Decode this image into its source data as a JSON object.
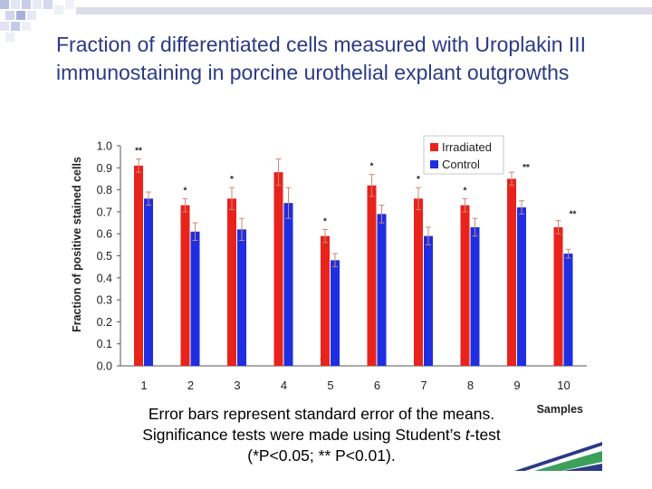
{
  "slide": {
    "title": "Fraction of differentiated cells measured with Uroplakin III immunostaining in porcine urothelial explant outgrowths",
    "caption_line1": "Error bars represent standard error of the means.",
    "caption_line2_pre": "Significance tests were made using Student’s ",
    "caption_line2_italic": "t",
    "caption_line2_post": "-test",
    "caption_line3": "(*P<0.05; ** P<0.01).",
    "accent_color": "#2b3a85"
  },
  "chart_data": {
    "type": "bar",
    "ylabel": "Fraction of positive stained cells",
    "xlabel": "Samples",
    "ylim": [
      0,
      1.0
    ],
    "yticks": [
      "0.0",
      "0.1",
      "0.2",
      "0.3",
      "0.4",
      "0.5",
      "0.6",
      "0.7",
      "0.8",
      "0.9",
      "1.0"
    ],
    "categories": [
      "1",
      "2",
      "3",
      "4",
      "5",
      "6",
      "7",
      "8",
      "9",
      "10"
    ],
    "legend_position": "top-right",
    "series": [
      {
        "name": "Irradiated",
        "color": "#e8231c",
        "values": [
          0.91,
          0.73,
          0.76,
          0.88,
          0.59,
          0.82,
          0.76,
          0.73,
          0.85,
          0.63
        ],
        "errors": [
          0.03,
          0.03,
          0.05,
          0.06,
          0.03,
          0.05,
          0.05,
          0.03,
          0.03,
          0.03
        ]
      },
      {
        "name": "Control",
        "color": "#1f2ee0",
        "values": [
          0.76,
          0.61,
          0.62,
          0.74,
          0.48,
          0.69,
          0.59,
          0.63,
          0.72,
          0.51
        ],
        "errors": [
          0.03,
          0.04,
          0.05,
          0.07,
          0.03,
          0.04,
          0.04,
          0.04,
          0.03,
          0.02
        ]
      }
    ],
    "significance": [
      "**",
      "*",
      "*",
      "",
      "*",
      "*",
      "*",
      "*",
      "**",
      "**"
    ]
  }
}
